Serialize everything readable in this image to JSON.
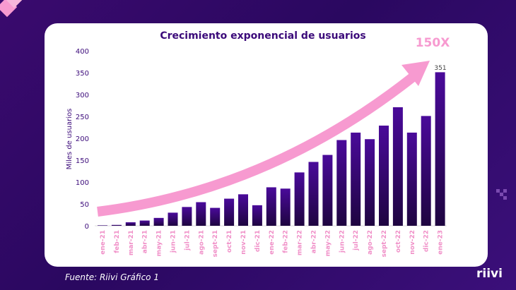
{
  "chart_data": {
    "type": "bar",
    "title": "Crecimiento exponencial de usuarios",
    "ylabel": "Miles de usuarios",
    "xlabel": "",
    "ylim": [
      0,
      400
    ],
    "yticks": [
      0,
      50,
      100,
      150,
      200,
      250,
      300,
      350,
      400
    ],
    "categories": [
      "ene-21",
      "feb-21",
      "mar-21",
      "abr-21",
      "may-21",
      "jun-21",
      "jul-21",
      "ago-21",
      "sept-21",
      "oct-21",
      "nov-21",
      "dic-21",
      "ene-22",
      "feb-22",
      "mar-22",
      "abr-22",
      "may-22",
      "jun-22",
      "jul-22",
      "ago-22",
      "sept-22",
      "oct-22",
      "nov-22",
      "dic-22",
      "ene-23"
    ],
    "values": [
      1,
      2,
      8,
      12,
      18,
      30,
      43,
      54,
      41,
      62,
      72,
      47,
      88,
      85,
      122,
      146,
      162,
      196,
      213,
      198,
      229,
      271,
      213,
      251,
      351
    ],
    "data_labels": {
      "ene-23": "351"
    },
    "annotation": "150X",
    "grid": false,
    "colors": {
      "bar_top": "#4a0a9a",
      "bar_bottom": "#1e0540",
      "arrow": "#f79ad0",
      "axis_labels": "#f090c8",
      "title": "#3b0a7a"
    }
  },
  "footer": {
    "source_label": "Fuente:",
    "source_text": "Riivi Gráfico 1"
  },
  "brand": {
    "logo": "riivi"
  }
}
